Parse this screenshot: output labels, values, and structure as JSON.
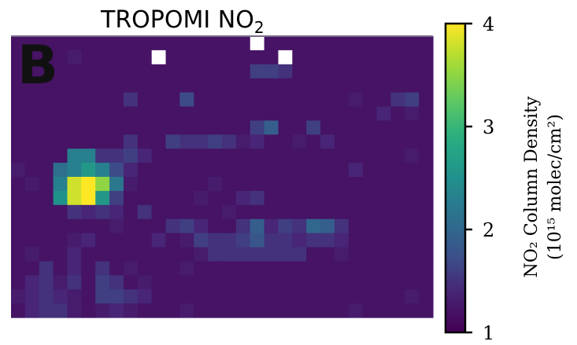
{
  "chart_data": {
    "type": "heatmap",
    "title": "TROPOMI NO",
    "title_subscript": "2",
    "panel_label": "B",
    "colormap": "viridis",
    "colorbar": {
      "min": 1,
      "max": 4,
      "ticks": [
        "1",
        "2",
        "3",
        "4"
      ],
      "label_line1": "NO₂ Column Density",
      "label_line2": "(10¹⁵ molec/cm²)"
    },
    "grid": {
      "cols": 30,
      "rows": 20,
      "values": [
        [
          1.2,
          1.2,
          1.2,
          1.2,
          1.2,
          1.2,
          1.2,
          1.2,
          1.2,
          1.2,
          1.2,
          1.2,
          1.2,
          1.2,
          1.2,
          1.2,
          1.2,
          null,
          1.2,
          1.2,
          1.2,
          1.2,
          1.2,
          1.2,
          1.2,
          1.2,
          1.2,
          1.2,
          1.2,
          1.2
        ],
        [
          1.2,
          1.2,
          1.2,
          1.2,
          1.3,
          1.2,
          1.2,
          1.2,
          1.2,
          1.2,
          null,
          1.2,
          1.2,
          1.2,
          1.2,
          1.2,
          1.2,
          1.2,
          1.2,
          null,
          1.2,
          1.2,
          1.2,
          1.2,
          1.2,
          1.2,
          1.2,
          1.2,
          1.2,
          1.2
        ],
        [
          1.2,
          1.2,
          1.2,
          1.2,
          1.2,
          1.2,
          1.2,
          1.2,
          1.2,
          1.2,
          1.2,
          1.2,
          1.2,
          1.2,
          1.2,
          1.2,
          1.2,
          1.6,
          1.6,
          1.5,
          1.2,
          1.2,
          1.2,
          1.2,
          1.2,
          1.2,
          1.2,
          1.2,
          1.2,
          1.2
        ],
        [
          1.2,
          1.2,
          1.2,
          1.2,
          1.2,
          1.2,
          1.2,
          1.2,
          1.2,
          1.2,
          1.2,
          1.2,
          1.2,
          1.2,
          1.2,
          1.2,
          1.2,
          1.2,
          1.2,
          1.2,
          1.2,
          1.2,
          1.2,
          1.2,
          1.2,
          1.2,
          1.2,
          1.2,
          1.2,
          1.2
        ],
        [
          1.2,
          1.2,
          1.2,
          1.2,
          1.2,
          1.2,
          1.2,
          1.2,
          1.5,
          1.2,
          1.2,
          1.2,
          1.7,
          1.2,
          1.2,
          1.2,
          1.2,
          1.2,
          1.2,
          1.2,
          1.2,
          1.2,
          1.2,
          1.2,
          1.3,
          1.2,
          1.2,
          1.5,
          1.6,
          1.2
        ],
        [
          1.2,
          1.2,
          1.2,
          1.2,
          1.2,
          1.2,
          1.2,
          1.2,
          1.2,
          1.2,
          1.2,
          1.2,
          1.2,
          1.2,
          1.2,
          1.2,
          1.2,
          1.2,
          1.2,
          1.2,
          1.2,
          1.2,
          1.2,
          1.2,
          1.2,
          1.2,
          1.4,
          1.2,
          1.3,
          1.2
        ],
        [
          1.2,
          1.2,
          1.2,
          1.2,
          1.2,
          1.2,
          1.2,
          1.2,
          1.2,
          1.2,
          1.2,
          1.2,
          1.2,
          1.2,
          1.2,
          1.2,
          1.2,
          1.6,
          1.9,
          1.2,
          1.2,
          1.6,
          1.2,
          1.2,
          1.2,
          1.2,
          1.2,
          1.2,
          1.2,
          1.2
        ],
        [
          1.2,
          1.2,
          1.2,
          1.2,
          1.2,
          1.2,
          1.2,
          1.2,
          1.5,
          1.2,
          1.2,
          1.6,
          1.5,
          1.5,
          1.6,
          1.5,
          1.3,
          1.4,
          1.2,
          1.2,
          1.3,
          1.2,
          1.4,
          1.2,
          1.2,
          1.2,
          1.2,
          1.2,
          1.2,
          1.2
        ],
        [
          1.2,
          1.2,
          1.2,
          1.2,
          2.3,
          2.3,
          1.5,
          1.5,
          1.6,
          1.4,
          1.2,
          1.2,
          1.2,
          1.2,
          1.2,
          1.2,
          1.2,
          1.2,
          1.2,
          1.2,
          1.2,
          1.2,
          1.2,
          1.2,
          1.2,
          1.2,
          1.2,
          1.2,
          1.3,
          1.2
        ],
        [
          1.3,
          1.2,
          1.2,
          2.1,
          2.3,
          2.6,
          2.3,
          1.7,
          1.4,
          1.2,
          1.2,
          1.2,
          1.2,
          1.2,
          1.2,
          1.2,
          1.2,
          1.2,
          1.2,
          1.2,
          1.2,
          1.2,
          1.2,
          1.2,
          1.4,
          1.2,
          1.2,
          1.2,
          1.2,
          1.2
        ],
        [
          1.2,
          1.3,
          1.2,
          2.3,
          3.8,
          4.0,
          3.5,
          2.2,
          1.3,
          1.2,
          1.2,
          1.2,
          1.2,
          1.2,
          1.3,
          1.2,
          1.2,
          1.2,
          1.2,
          1.2,
          1.2,
          1.2,
          1.2,
          1.2,
          1.2,
          1.2,
          1.2,
          1.2,
          1.2,
          1.2
        ],
        [
          1.2,
          1.2,
          1.2,
          2.5,
          3.8,
          4.0,
          2.6,
          1.6,
          1.2,
          1.2,
          1.2,
          1.2,
          1.2,
          1.3,
          1.2,
          1.2,
          1.4,
          1.5,
          1.2,
          1.2,
          1.2,
          1.2,
          1.2,
          1.2,
          1.2,
          1.2,
          1.2,
          1.2,
          1.2,
          1.2
        ],
        [
          1.2,
          1.2,
          1.2,
          1.2,
          1.5,
          1.4,
          1.5,
          1.4,
          1.2,
          1.5,
          1.2,
          1.2,
          1.2,
          1.2,
          1.2,
          1.3,
          1.2,
          1.2,
          1.2,
          1.2,
          1.2,
          1.2,
          1.2,
          1.2,
          1.2,
          1.2,
          1.2,
          1.2,
          1.2,
          1.2
        ],
        [
          1.2,
          1.2,
          1.2,
          1.2,
          1.2,
          1.2,
          1.2,
          1.3,
          1.2,
          1.2,
          1.2,
          1.5,
          1.6,
          1.4,
          1.2,
          1.2,
          1.5,
          1.9,
          1.4,
          1.6,
          1.5,
          2.0,
          1.9,
          1.5,
          1.2,
          1.2,
          1.2,
          1.2,
          1.2,
          1.2
        ],
        [
          1.2,
          1.2,
          1.2,
          1.2,
          1.3,
          1.4,
          1.2,
          1.2,
          1.2,
          1.2,
          1.4,
          1.2,
          1.3,
          1.6,
          1.5,
          1.5,
          1.6,
          1.8,
          1.5,
          1.5,
          1.4,
          1.5,
          1.5,
          1.4,
          1.2,
          1.2,
          1.2,
          1.2,
          1.2,
          1.2
        ],
        [
          1.2,
          1.3,
          1.2,
          1.2,
          1.4,
          1.2,
          1.2,
          1.2,
          1.2,
          1.2,
          1.2,
          1.2,
          1.2,
          1.3,
          1.5,
          1.5,
          1.5,
          1.5,
          1.5,
          1.5,
          1.5,
          1.2,
          1.2,
          1.3,
          1.2,
          1.2,
          1.2,
          1.2,
          1.2,
          1.2
        ],
        [
          1.2,
          1.2,
          1.5,
          1.2,
          1.4,
          1.2,
          1.5,
          1.2,
          1.3,
          1.2,
          1.2,
          1.2,
          1.3,
          1.2,
          1.2,
          1.2,
          1.2,
          1.2,
          1.2,
          1.2,
          1.2,
          1.2,
          1.2,
          1.2,
          1.2,
          1.2,
          1.2,
          1.2,
          1.2,
          1.2
        ],
        [
          1.2,
          1.4,
          1.5,
          1.3,
          1.5,
          1.2,
          1.6,
          1.5,
          1.2,
          1.3,
          1.2,
          1.2,
          1.2,
          1.2,
          1.2,
          1.2,
          1.2,
          1.2,
          1.2,
          1.2,
          1.2,
          1.2,
          1.2,
          1.2,
          1.2,
          1.2,
          1.2,
          1.2,
          1.2,
          1.2
        ],
        [
          1.3,
          1.4,
          1.5,
          1.4,
          1.3,
          1.2,
          1.6,
          1.6,
          1.5,
          1.4,
          1.2,
          1.2,
          1.2,
          1.2,
          1.2,
          1.2,
          1.2,
          1.2,
          1.2,
          1.2,
          1.2,
          1.2,
          1.2,
          1.2,
          1.2,
          1.2,
          1.2,
          1.2,
          1.3,
          1.2
        ],
        [
          1.2,
          1.4,
          1.5,
          1.5,
          1.3,
          1.2,
          1.3,
          1.4,
          1.3,
          1.2,
          1.2,
          1.2,
          1.3,
          1.2,
          1.2,
          1.2,
          1.2,
          1.2,
          1.2,
          1.2,
          1.2,
          1.2,
          1.2,
          1.2,
          1.3,
          1.2,
          1.2,
          1.2,
          1.2,
          1.2
        ]
      ]
    }
  }
}
